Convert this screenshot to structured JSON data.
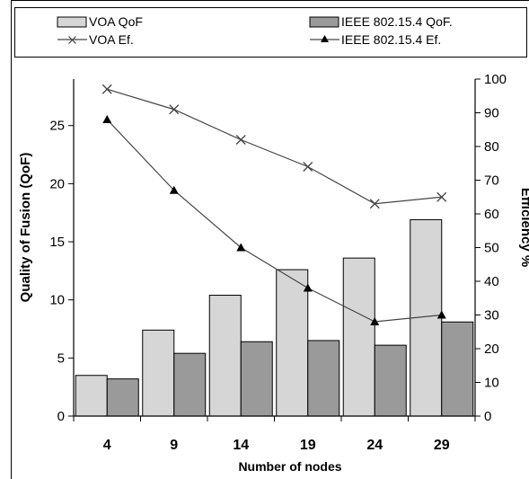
{
  "chart_data": {
    "type": "bar",
    "categories": [
      "4",
      "9",
      "14",
      "19",
      "24",
      "29"
    ],
    "xlabel": "Number of nodes",
    "ylabel": "Quality of Fusion (QoF)",
    "y2label": "Efficiency %",
    "ylim": [
      0,
      29
    ],
    "yticks": [
      "0",
      "5",
      "10",
      "15",
      "20",
      "25"
    ],
    "y2lim": [
      0,
      100
    ],
    "y2ticks": [
      "0",
      "10",
      "20",
      "30",
      "40",
      "50",
      "60",
      "70",
      "80",
      "90",
      "100"
    ],
    "legend_position": "top",
    "series": [
      {
        "name": "VOA QoF",
        "kind": "bar",
        "axis": "left",
        "color": "#d6d6d6",
        "values": [
          3.5,
          7.4,
          10.4,
          12.6,
          13.6,
          16.9
        ]
      },
      {
        "name": "IEEE 802.15.4 QoF.",
        "kind": "bar",
        "axis": "left",
        "color": "#9a9a9a",
        "values": [
          3.2,
          5.4,
          6.4,
          6.5,
          6.1,
          8.1
        ]
      },
      {
        "name": "VOA Ef.",
        "kind": "line",
        "axis": "right",
        "marker": "x",
        "color": "#444444",
        "values": [
          97,
          91,
          82,
          74,
          63,
          65
        ]
      },
      {
        "name": "IEEE 802.15.4 Ef.",
        "kind": "line",
        "axis": "right",
        "marker": "triangle",
        "color": "#444444",
        "values": [
          88,
          67,
          50,
          38,
          28,
          30
        ]
      }
    ]
  }
}
